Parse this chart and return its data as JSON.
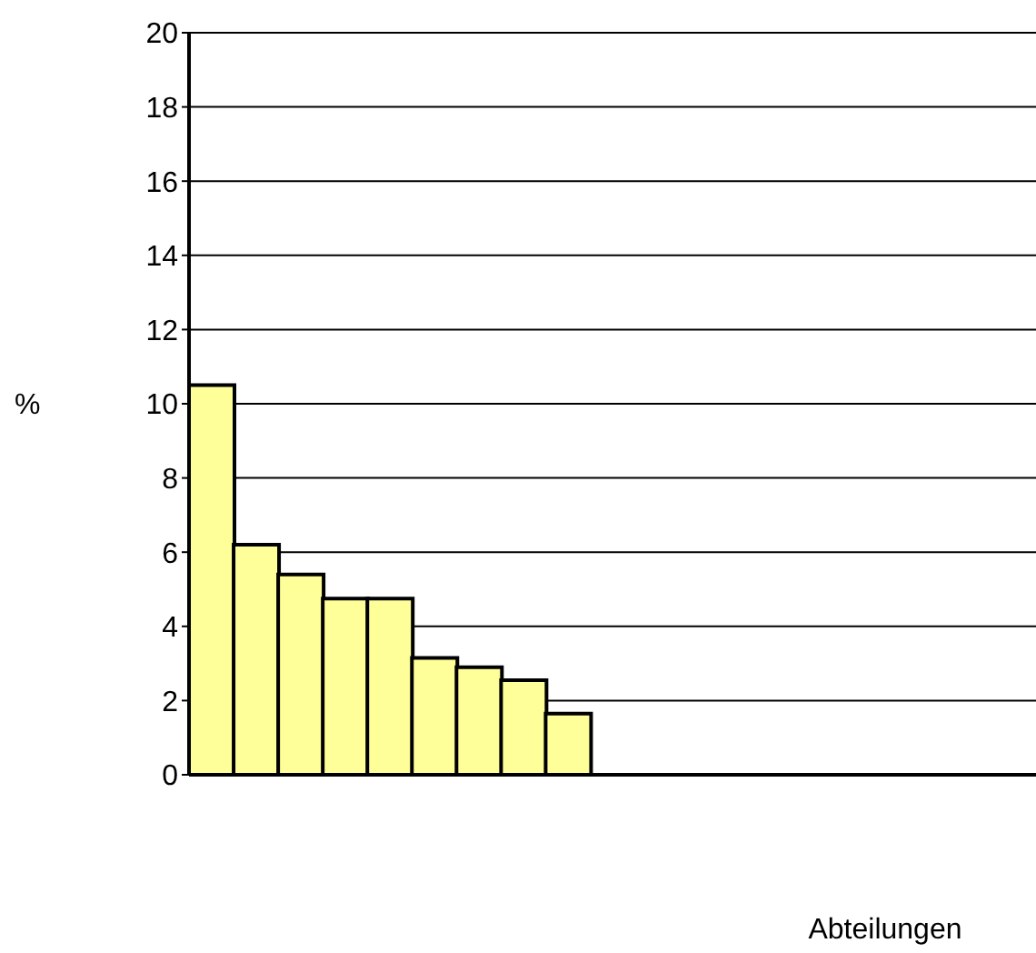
{
  "chart_data": {
    "type": "bar",
    "xlabel": "Abteilungen",
    "ylabel": "%",
    "categories": [
      null,
      null,
      null,
      null,
      null,
      null,
      null,
      null,
      null,
      null,
      null,
      null,
      null,
      null,
      null,
      null,
      null,
      null,
      null
    ],
    "values": [
      10.5,
      6.2,
      5.4,
      4.75,
      4.75,
      3.15,
      2.9,
      2.55,
      1.65,
      null,
      null,
      null,
      null,
      null,
      null,
      null,
      null,
      null,
      null
    ],
    "color": "#ffff99",
    "ylim": [
      0,
      20
    ],
    "yticks": [
      0,
      2,
      4,
      6,
      8,
      10,
      12,
      14,
      16,
      18,
      20
    ],
    "grid": "y",
    "legend": false
  }
}
